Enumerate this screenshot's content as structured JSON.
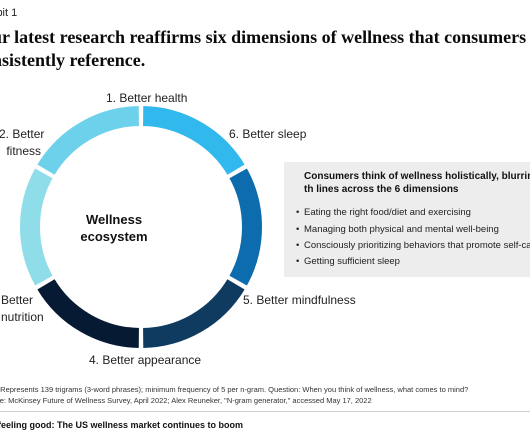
{
  "exhibit": "ibit 1",
  "headline": "ur latest research reaffirms six dimensions of wellness that consumers nsistently reference.",
  "center": {
    "line1": "Wellness",
    "line2": "ecosystem"
  },
  "segments": [
    {
      "label": "1. Better health",
      "color": "#8fdde8"
    },
    {
      "label": "6. Better sleep",
      "color": "#6ed1ec"
    },
    {
      "label": "5. Better mindfulness",
      "color": "#31b8ec"
    },
    {
      "label": "4. Better appearance",
      "color": "#0c6cad"
    },
    {
      "label_line1": "Better",
      "label_line2": "nutrition",
      "color": "#0f3b61"
    },
    {
      "label_line1": "2. Better",
      "label_line2": "fitness",
      "color": "#061a33"
    }
  ],
  "callout": {
    "title": "Consumers think of wellness holistically, blurring th lines across the 6 dimensions",
    "bullets": [
      "Eating the right food/diet and exercising",
      "Managing both physical and mental well-being",
      "Consciously prioritizing behaviors that promote self-ca",
      "Getting sufficient sleep"
    ]
  },
  "notes": {
    "note": ": Represents 139 trigrams (3-word phrases); minimum frequency of 5 per n-gram. Question: When you think of wellness, what comes to mind?",
    "source": "ce: McKinsey Future of Wellness Survey, April 2022; Alex Reuneker, \"N-gram generator,\" accessed May 17, 2022"
  },
  "footer": "feeling good: The US wellness market continues to boom"
}
